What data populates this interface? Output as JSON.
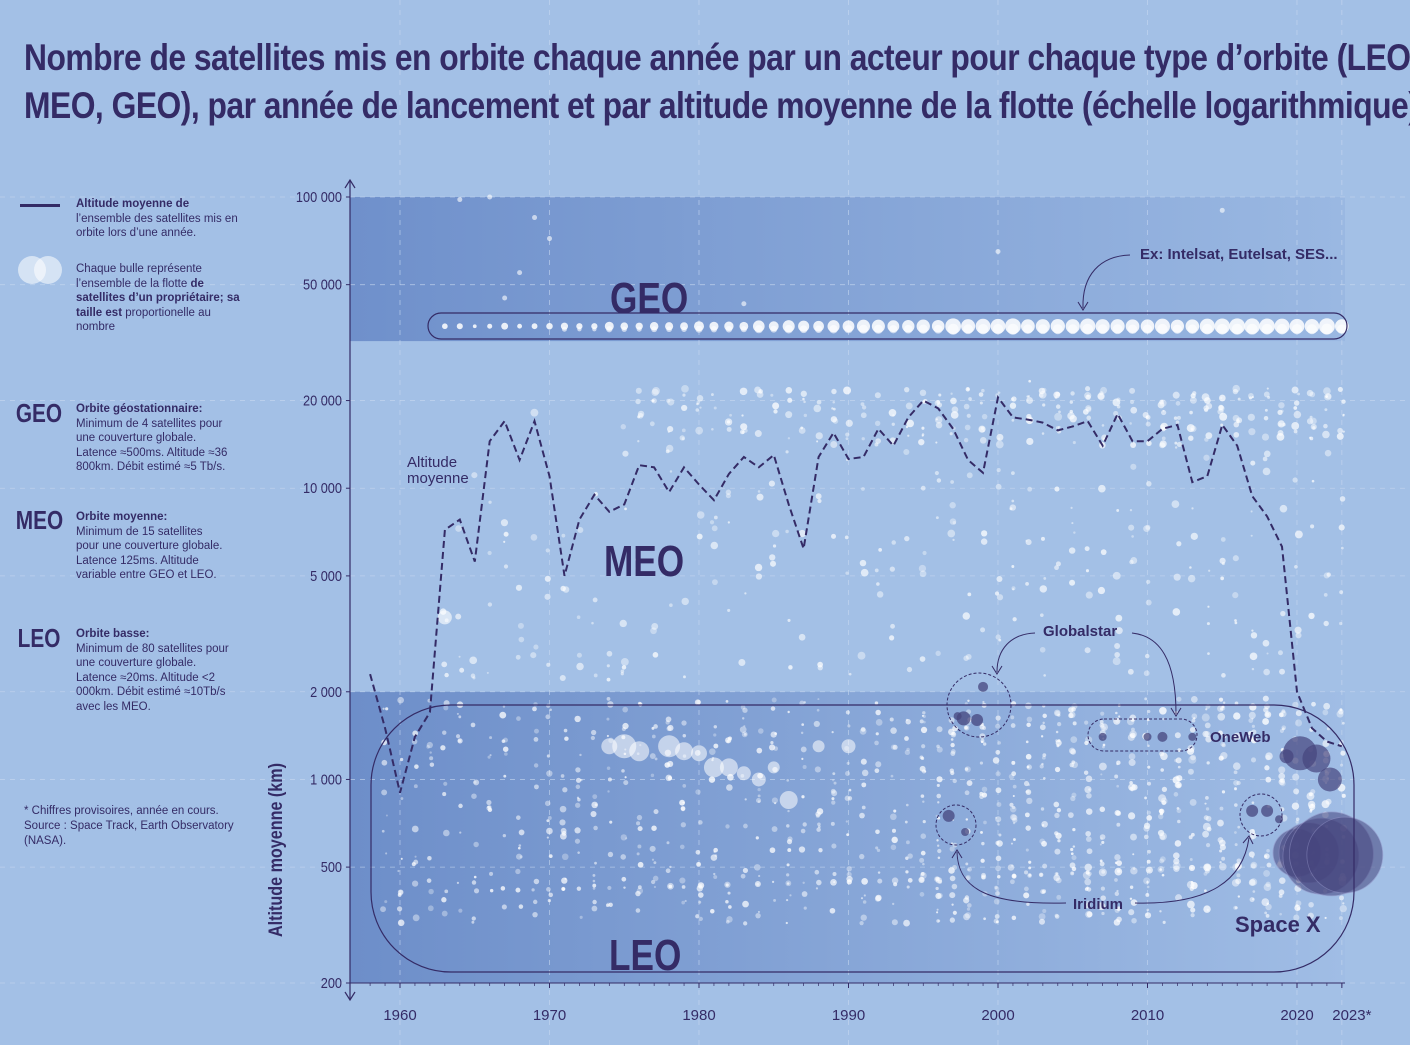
{
  "title_lines": [
    "Nombre de satellites mis en orbite chaque année par un acteur pour chaque type d’orbite (LEO,",
    "MEO, GEO), par année de lancement et par altitude moyenne de la flotte (échelle logarithmique)"
  ],
  "legend": {
    "line_bold": "Altitude moyenne de",
    "line_rest": "l’ensemble des satellites mis en orbite lors d’une année.",
    "bubble_a": "Chaque bulle représente l’ensemble de la flotte",
    "bubble_b": "de satellites d’un propriétaire; sa taille est",
    "bubble_c": "proportionelle au nombre"
  },
  "orbits": [
    {
      "abbr": "GEO",
      "name": "Orbite géostationnaire:",
      "desc": "Minimum de 4 satellites pour une couverture globale. Latence ≈500ms. Altitude ≈36 800km. Débit estimé ≈5 Tb/s."
    },
    {
      "abbr": "MEO",
      "name": "Orbite moyenne:",
      "desc": "Minimum de 15 satellites pour une couverture globale. Latence 125ms. Altitude variable entre GEO et LEO."
    },
    {
      "abbr": "LEO",
      "name": "Orbite basse:",
      "desc": "Minimum de 80 satellites pour une couverture globale. Latence ≈20ms. Altitude <2 000km. Débit estimé ≈10Tb/s avec les MEO."
    }
  ],
  "footnote": "* Chiffres provisoires, année en cours. Source : Space Track, Earth Observatory (NASA).",
  "colors": {
    "background": "#a3c0e6",
    "dark": "#342b66",
    "band": "#7193cc",
    "bubble_light": "#ffffff",
    "bubble_dark": "#46457e"
  },
  "chart_data": {
    "type": "scatter",
    "title": "Nombre de satellites mis en orbite chaque année par un acteur pour chaque type d’orbite (LEO, MEO, GEO), par année de lancement et par altitude moyenne de la flotte (échelle logarithmique)",
    "ylabel": "Altitude moyenne (km)",
    "xlabel": "",
    "yscale": "log",
    "ylim": [
      200,
      100000
    ],
    "xlim": [
      1957,
      2024
    ],
    "yticks": [
      200,
      500,
      1000,
      2000,
      5000,
      10000,
      20000,
      50000,
      100000
    ],
    "ytick_labels": [
      "200",
      "500",
      "1 000",
      "2 000",
      "5 000",
      "10 000",
      "20 000",
      "50 000",
      "100 000"
    ],
    "xticks": [
      1960,
      1970,
      1980,
      1990,
      2000,
      2010,
      2020,
      2023
    ],
    "xtick_labels": [
      "1960",
      "1970",
      "1980",
      "1990",
      "2000",
      "2010",
      "2020",
      "2023*"
    ],
    "grid": true,
    "regions": [
      {
        "label": "GEO",
        "from": 32000,
        "to": 100000
      },
      {
        "label": "MEO",
        "from": 2000,
        "to": 32000
      },
      {
        "label": "LEO",
        "from": 200,
        "to": 2000
      }
    ],
    "mean_altitude_line": {
      "label": "Altitude moyenne",
      "x": [
        1958,
        1959,
        1960,
        1961,
        1962,
        1963,
        1964,
        1965,
        1966,
        1967,
        1968,
        1969,
        1970,
        1971,
        1972,
        1973,
        1974,
        1975,
        1976,
        1977,
        1978,
        1979,
        1980,
        1981,
        1982,
        1983,
        1984,
        1985,
        1986,
        1987,
        1988,
        1989,
        1990,
        1991,
        1992,
        1993,
        1994,
        1995,
        1996,
        1997,
        1998,
        1999,
        2000,
        2001,
        2002,
        2003,
        2004,
        2005,
        2006,
        2007,
        2008,
        2009,
        2010,
        2011,
        2012,
        2013,
        2014,
        2015,
        2016,
        2017,
        2018,
        2019,
        2020,
        2021,
        2022,
        2023
      ],
      "y": [
        2300,
        1500,
        900,
        1400,
        1700,
        7200,
        7800,
        5600,
        14500,
        17000,
        12500,
        17000,
        11000,
        5000,
        7800,
        9500,
        8300,
        8800,
        12000,
        11800,
        9700,
        11800,
        10300,
        9100,
        11200,
        12800,
        11800,
        13000,
        8800,
        6200,
        12800,
        15500,
        12600,
        12800,
        16000,
        14000,
        17500,
        20000,
        18800,
        16000,
        12500,
        11300,
        20500,
        17500,
        17200,
        16800,
        15800,
        16300,
        17000,
        14000,
        18000,
        14500,
        14500,
        16000,
        16500,
        10500,
        11000,
        16500,
        14000,
        9400,
        8000,
        6300,
        2000,
        1500,
        1350,
        1300
      ]
    },
    "named_owners": [
      {
        "name": "Ex: Intelsat, Eutelsat, SES...",
        "orbit": "GEO",
        "altitude": 36000
      },
      {
        "name": "Globalstar",
        "years": [
          1997,
          1999,
          2007,
          2013
        ],
        "altitude": [
          1600,
          2100,
          1400,
          1400
        ]
      },
      {
        "name": "OneWeb",
        "years": [
          2019,
          2020,
          2021,
          2022
        ],
        "altitude": [
          1200,
          1250,
          1200,
          1000
        ]
      },
      {
        "name": "Iridium",
        "years": [
          1997,
          1998,
          2017,
          2018,
          2019
        ],
        "altitude": [
          750,
          650,
          780,
          780,
          730
        ]
      },
      {
        "name": "Space X",
        "years": [
          2019,
          2020,
          2021,
          2022,
          2023
        ],
        "altitude": [
          550,
          560,
          540,
          560,
          550
        ]
      }
    ],
    "bubble_series": {
      "GEO_track": {
        "years_from": 1963,
        "years_to": 2023,
        "altitude": 36000
      },
      "LEO_mid_sizes": [
        {
          "x": 1974,
          "y": 1300,
          "n": 8
        },
        {
          "x": 1975,
          "y": 1300,
          "n": 12
        },
        {
          "x": 1976,
          "y": 1250,
          "n": 10
        },
        {
          "x": 1978,
          "y": 1300,
          "n": 11
        },
        {
          "x": 1979,
          "y": 1250,
          "n": 9
        },
        {
          "x": 1980,
          "y": 1230,
          "n": 8
        },
        {
          "x": 1981,
          "y": 1100,
          "n": 10
        },
        {
          "x": 1982,
          "y": 1100,
          "n": 9
        },
        {
          "x": 1983,
          "y": 1050,
          "n": 7
        },
        {
          "x": 1984,
          "y": 1000,
          "n": 7
        },
        {
          "x": 1985,
          "y": 1100,
          "n": 6
        },
        {
          "x": 1986,
          "y": 850,
          "n": 9
        },
        {
          "x": 1988,
          "y": 1300,
          "n": 6
        },
        {
          "x": 1990,
          "y": 1300,
          "n": 7
        }
      ]
    }
  },
  "annotations": {
    "geo_label": "GEO",
    "meo_label": "MEO",
    "leo_label": "LEO",
    "altitude_moyenne_1": "Altitude",
    "altitude_moyenne_2": "moyenne",
    "intelsat": "Ex: Intelsat, Eutelsat, SES...",
    "globalstar": "Globalstar",
    "oneweb": "OneWeb",
    "iridium": "Iridium",
    "spacex": "Space X"
  }
}
